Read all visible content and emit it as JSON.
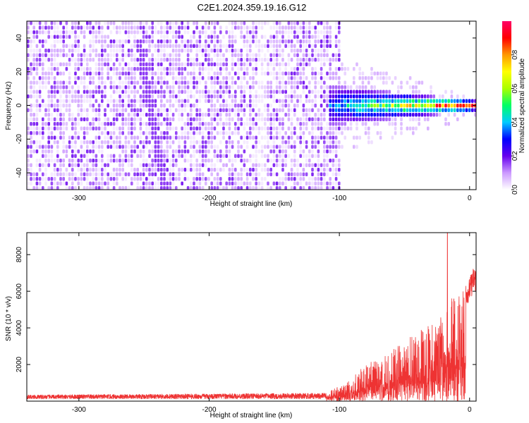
{
  "figure_title": "C2E1.2024.359.19.16.G12",
  "chart_data": [
    {
      "type": "heatmap",
      "title": "",
      "xlabel": "Height of straight line (km)",
      "ylabel": "Frequency (Hz)",
      "xlim": [
        -340,
        5
      ],
      "ylim": [
        -50,
        50
      ],
      "x_ticks": [
        -300,
        -200,
        -100,
        0
      ],
      "y_ticks": [
        -40,
        -20,
        0,
        20,
        40
      ],
      "colorbar": {
        "label": "Normalized spectral amplitude",
        "range": [
          0,
          1
        ],
        "ticks": [
          0.0,
          0.2,
          0.4,
          0.6,
          0.8
        ],
        "colormap": [
          "#ffffff",
          "#cc99ff",
          "#6600ee",
          "#0000ff",
          "#00ccff",
          "#00ff66",
          "#aaff00",
          "#ffff00",
          "#ff9900",
          "#ff0000",
          "#ff0066"
        ]
      },
      "features": {
        "noise_region_x": [
          -340,
          -100
        ],
        "signal_band_x": [
          -110,
          5
        ],
        "signal_band_center_freq": 1,
        "diagonal_streak": {
          "x": [
            -255,
            -235
          ],
          "y": [
            40,
            -50
          ]
        },
        "vertical_gap_x": -160
      }
    },
    {
      "type": "line",
      "title": "",
      "xlabel": "Height of straight line (km)",
      "ylabel": "SNR (10 * v/v)",
      "xlim": [
        -340,
        5
      ],
      "ylim": [
        0,
        9200
      ],
      "x_ticks": [
        -300,
        -200,
        -100,
        0
      ],
      "y_ticks": [
        2000,
        4000,
        6000,
        8000
      ],
      "series": [
        {
          "color": "#ee3333",
          "envelope_x": [
            -340,
            -110,
            -100,
            -90,
            -80,
            -70,
            -60,
            -50,
            -40,
            -30,
            -25,
            -20,
            -15,
            -10,
            -5,
            0,
            3
          ],
          "envelope_y": [
            300,
            400,
            800,
            1300,
            1900,
            2200,
            2700,
            3200,
            3700,
            4000,
            4300,
            5000,
            5300,
            5600,
            6000,
            6400,
            7000
          ],
          "peak": {
            "x": -17,
            "y": 9200
          }
        }
      ]
    }
  ]
}
